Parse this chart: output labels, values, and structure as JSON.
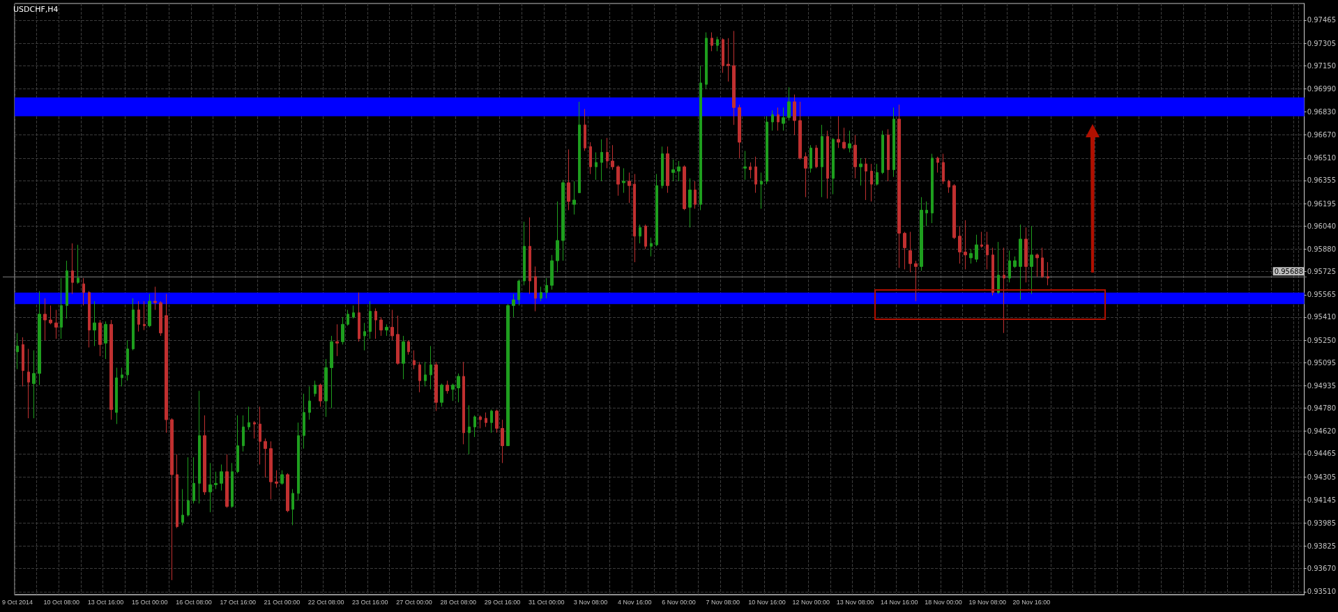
{
  "chart_data": {
    "type": "candlestick",
    "title": "USDCHF,H4",
    "categories": [
      "9 Oct 2014",
      null,
      null,
      null,
      null,
      null,
      null,
      null,
      "10 Oct 08:00",
      null,
      null,
      null,
      null,
      null,
      null,
      null,
      "13 Oct 16:00",
      null,
      null,
      null,
      null,
      null,
      null,
      null,
      "15 Oct 00:00",
      null,
      null,
      null,
      null,
      null,
      null,
      null,
      "16 Oct 08:00",
      null,
      null,
      null,
      null,
      null,
      null,
      null,
      "17 Oct 16:00",
      null,
      null,
      null,
      null,
      null,
      null,
      null,
      "21 Oct 00:00",
      null,
      null,
      null,
      null,
      null,
      null,
      null,
      "22 Oct 08:00",
      null,
      null,
      null,
      null,
      null,
      null,
      null,
      "23 Oct 16:00",
      null,
      null,
      null,
      null,
      null,
      null,
      null,
      "27 Oct 00:00",
      null,
      null,
      null,
      null,
      null,
      null,
      null,
      "28 Oct 08:00",
      null,
      null,
      null,
      null,
      null,
      null,
      null,
      "29 Oct 16:00",
      null,
      null,
      null,
      null,
      null,
      null,
      null,
      "31 Oct 00:00",
      null,
      null,
      null,
      null,
      null,
      null,
      null,
      "3 Nov 08:00",
      null,
      null,
      null,
      null,
      null,
      null,
      null,
      "4 Nov 16:00",
      null,
      null,
      null,
      null,
      null,
      null,
      null,
      "6 Nov 00:00",
      null,
      null,
      null,
      null,
      null,
      null,
      null,
      "7 Nov 08:00",
      null,
      null,
      null,
      null,
      null,
      null,
      null,
      "10 Nov 16:00",
      null,
      null,
      null,
      null,
      null,
      null,
      null,
      "12 Nov 00:00",
      null,
      null,
      null,
      null,
      null,
      null,
      null,
      "13 Nov 08:00",
      null,
      null,
      null,
      null,
      null,
      null,
      null,
      "14 Nov 16:00",
      null,
      null,
      null,
      null,
      null,
      null,
      null,
      "18 Nov 00:00",
      null,
      null,
      null,
      null,
      null,
      null,
      null,
      "19 Nov 08:00",
      null,
      null,
      null,
      null,
      null,
      null,
      null,
      "20 Nov 16:00",
      null,
      null,
      null,
      null,
      null,
      null,
      null,
      null,
      null,
      null,
      null,
      null,
      null,
      null,
      null,
      null,
      null,
      null,
      null,
      null,
      null,
      null,
      null,
      null,
      null,
      null,
      null,
      null,
      null,
      null,
      null,
      null,
      null,
      null,
      null,
      null,
      null,
      null,
      null,
      null,
      null,
      null,
      null,
      null,
      null,
      null,
      null,
      null,
      null
    ],
    "ohlc": [
      [
        0.9517,
        0.953,
        0.9505,
        0.9521
      ],
      [
        0.9522,
        0.9527,
        0.9493,
        0.9504
      ],
      [
        0.9503,
        0.9519,
        0.9471,
        0.9496
      ],
      [
        0.9495,
        0.9518,
        0.9471,
        0.9502
      ],
      [
        0.9502,
        0.9559,
        0.9494,
        0.9543
      ],
      [
        0.9543,
        0.9554,
        0.9525,
        0.9539
      ],
      [
        0.9539,
        0.9549,
        0.9536,
        0.9537
      ],
      [
        0.9537,
        0.9546,
        0.9526,
        0.9534
      ],
      [
        0.9534,
        0.9568,
        0.9526,
        0.9549
      ],
      [
        0.9549,
        0.958,
        0.954,
        0.9573
      ],
      [
        0.9573,
        0.9592,
        0.9557,
        0.9565
      ],
      [
        0.9565,
        0.9591,
        0.9564,
        0.9568
      ],
      [
        0.9564,
        0.9568,
        0.9549,
        0.9558
      ],
      [
        0.9558,
        0.9559,
        0.952,
        0.9532
      ],
      [
        0.9532,
        0.9552,
        0.9521,
        0.9537
      ],
      [
        0.9537,
        0.9539,
        0.9514,
        0.9522
      ],
      [
        0.9523,
        0.9538,
        0.9512,
        0.9536
      ],
      [
        0.9536,
        0.9539,
        0.947,
        0.9477
      ],
      [
        0.9475,
        0.9506,
        0.9467,
        0.9499
      ],
      [
        0.9499,
        0.9506,
        0.9493,
        0.9501
      ],
      [
        0.9501,
        0.9525,
        0.9497,
        0.9519
      ],
      [
        0.9519,
        0.9554,
        0.9518,
        0.9546
      ],
      [
        0.9546,
        0.9552,
        0.9531,
        0.9536
      ],
      [
        0.9536,
        0.9552,
        0.9532,
        0.9535
      ],
      [
        0.9535,
        0.9557,
        0.9534,
        0.9552
      ],
      [
        0.9552,
        0.9562,
        0.9546,
        0.9551
      ],
      [
        0.9551,
        0.9552,
        0.9528,
        0.953
      ],
      [
        0.9542,
        0.9557,
        0.9461,
        0.947
      ],
      [
        0.947,
        0.9471,
        0.9359,
        0.9432
      ],
      [
        0.9432,
        0.9446,
        0.9395,
        0.9396
      ],
      [
        0.9399,
        0.9422,
        0.9397,
        0.9404
      ],
      [
        0.9404,
        0.9444,
        0.9403,
        0.9414
      ],
      [
        0.9414,
        0.9444,
        0.9412,
        0.9426
      ],
      [
        0.9426,
        0.949,
        0.9412,
        0.9459
      ],
      [
        0.9459,
        0.9473,
        0.9418,
        0.942
      ],
      [
        0.942,
        0.944,
        0.9406,
        0.9425
      ],
      [
        0.9425,
        0.9434,
        0.9422,
        0.9426
      ],
      [
        0.9426,
        0.9439,
        0.9421,
        0.9434
      ],
      [
        0.9434,
        0.9446,
        0.9409,
        0.941
      ],
      [
        0.941,
        0.944,
        0.9409,
        0.9434
      ],
      [
        0.9434,
        0.9473,
        0.9433,
        0.9452
      ],
      [
        0.9452,
        0.9473,
        0.9448,
        0.9465
      ],
      [
        0.9465,
        0.9479,
        0.9463,
        0.9468
      ],
      [
        0.9468,
        0.9469,
        0.9457,
        0.9467
      ],
      [
        0.9467,
        0.9479,
        0.9439,
        0.9455
      ],
      [
        0.9455,
        0.9457,
        0.943,
        0.945
      ],
      [
        0.945,
        0.9455,
        0.9415,
        0.9427
      ],
      [
        0.9427,
        0.9435,
        0.9423,
        0.9426
      ],
      [
        0.9426,
        0.9435,
        0.9425,
        0.9432
      ],
      [
        0.9432,
        0.9433,
        0.9406,
        0.9407
      ],
      [
        0.9408,
        0.9422,
        0.9397,
        0.9419
      ],
      [
        0.9419,
        0.9468,
        0.9414,
        0.9459
      ],
      [
        0.9459,
        0.9488,
        0.945,
        0.9475
      ],
      [
        0.9475,
        0.9493,
        0.947,
        0.9483
      ],
      [
        0.9488,
        0.9497,
        0.9486,
        0.9494
      ],
      [
        0.9494,
        0.9495,
        0.9479,
        0.9483
      ],
      [
        0.9483,
        0.9512,
        0.9472,
        0.9506
      ],
      [
        0.9506,
        0.9528,
        0.9478,
        0.9524
      ],
      [
        0.9524,
        0.9536,
        0.9514,
        0.9523
      ],
      [
        0.9524,
        0.9541,
        0.9522,
        0.9536
      ],
      [
        0.9536,
        0.9546,
        0.9535,
        0.9543
      ],
      [
        0.9541,
        0.9549,
        0.954,
        0.9544
      ],
      [
        0.9544,
        0.9558,
        0.9524,
        0.9526
      ],
      [
        0.9528,
        0.9537,
        0.9518,
        0.9531
      ],
      [
        0.9531,
        0.9552,
        0.9526,
        0.9545
      ],
      [
        0.9545,
        0.9547,
        0.9526,
        0.9539
      ],
      [
        0.9539,
        0.9541,
        0.9528,
        0.9532
      ],
      [
        0.9532,
        0.9536,
        0.9528,
        0.9534
      ],
      [
        0.9534,
        0.9546,
        0.9525,
        0.9528
      ],
      [
        0.9529,
        0.9542,
        0.9508,
        0.9509
      ],
      [
        0.9509,
        0.9528,
        0.9498,
        0.9524
      ],
      [
        0.9524,
        0.9525,
        0.9515,
        0.9517
      ],
      [
        0.9511,
        0.9518,
        0.9505,
        0.9508
      ],
      [
        0.9508,
        0.951,
        0.9489,
        0.9497
      ],
      [
        0.9497,
        0.951,
        0.9493,
        0.9501
      ],
      [
        0.9501,
        0.9521,
        0.9491,
        0.9508
      ],
      [
        0.9508,
        0.951,
        0.9476,
        0.9482
      ],
      [
        0.9482,
        0.9495,
        0.9479,
        0.9494
      ],
      [
        0.9494,
        0.9497,
        0.9488,
        0.949
      ],
      [
        0.9491,
        0.9495,
        0.9483,
        0.9494
      ],
      [
        0.9492,
        0.9502,
        0.9482,
        0.95
      ],
      [
        0.95,
        0.951,
        0.9453,
        0.9461
      ],
      [
        0.9461,
        0.948,
        0.9446,
        0.9465
      ],
      [
        0.9465,
        0.9473,
        0.9458,
        0.9472
      ],
      [
        0.9472,
        0.9473,
        0.9464,
        0.947
      ],
      [
        0.9471,
        0.9475,
        0.9465,
        0.9468
      ],
      [
        0.9468,
        0.9477,
        0.9461,
        0.9476
      ],
      [
        0.9476,
        0.9477,
        0.9461,
        0.9464
      ],
      [
        0.9464,
        0.947,
        0.944,
        0.9452
      ],
      [
        0.9452,
        0.955,
        0.9452,
        0.9549
      ],
      [
        0.9549,
        0.9557,
        0.9541,
        0.9553
      ],
      [
        0.9553,
        0.9567,
        0.9549,
        0.9566
      ],
      [
        0.9566,
        0.9607,
        0.9563,
        0.959
      ],
      [
        0.959,
        0.961,
        0.9557,
        0.9566
      ],
      [
        0.9569,
        0.9576,
        0.9545,
        0.9554
      ],
      [
        0.9554,
        0.9562,
        0.9552,
        0.9558
      ],
      [
        0.9558,
        0.9568,
        0.9554,
        0.9563
      ],
      [
        0.9563,
        0.9584,
        0.956,
        0.958
      ],
      [
        0.958,
        0.9621,
        0.9572,
        0.9594
      ],
      [
        0.9594,
        0.9636,
        0.958,
        0.9634
      ],
      [
        0.9634,
        0.9657,
        0.9615,
        0.9621
      ],
      [
        0.9619,
        0.9635,
        0.9612,
        0.9622
      ],
      [
        0.9627,
        0.969,
        0.9627,
        0.9674
      ],
      [
        0.9674,
        0.9685,
        0.9656,
        0.9658
      ],
      [
        0.9659,
        0.9662,
        0.964,
        0.9645
      ],
      [
        0.9645,
        0.9655,
        0.9636,
        0.9648
      ],
      [
        0.9648,
        0.9664,
        0.9635,
        0.9655
      ],
      [
        0.9655,
        0.9665,
        0.9644,
        0.9649
      ],
      [
        0.9649,
        0.966,
        0.9643,
        0.9645
      ],
      [
        0.9645,
        0.9646,
        0.9625,
        0.9633
      ],
      [
        0.9634,
        0.9644,
        0.9627,
        0.9635
      ],
      [
        0.9635,
        0.9641,
        0.962,
        0.9632
      ],
      [
        0.9633,
        0.964,
        0.9579,
        0.9597
      ],
      [
        0.9597,
        0.9605,
        0.9592,
        0.9603
      ],
      [
        0.9604,
        0.9605,
        0.9588,
        0.959
      ],
      [
        0.959,
        0.9596,
        0.9583,
        0.9592
      ],
      [
        0.9591,
        0.964,
        0.959,
        0.9632
      ],
      [
        0.9632,
        0.9659,
        0.963,
        0.9654
      ],
      [
        0.9654,
        0.9659,
        0.9627,
        0.9632
      ],
      [
        0.9641,
        0.965,
        0.9635,
        0.9643
      ],
      [
        0.9642,
        0.9649,
        0.9635,
        0.9645
      ],
      [
        0.9645,
        0.9646,
        0.9615,
        0.9616
      ],
      [
        0.9617,
        0.9637,
        0.9603,
        0.9629
      ],
      [
        0.9629,
        0.9635,
        0.9616,
        0.9619
      ],
      [
        0.9619,
        0.9715,
        0.9615,
        0.9703
      ],
      [
        0.9702,
        0.9738,
        0.9699,
        0.9734
      ],
      [
        0.9734,
        0.9738,
        0.9725,
        0.9729
      ],
      [
        0.9729,
        0.9735,
        0.9725,
        0.9733
      ],
      [
        0.9733,
        0.9734,
        0.971,
        0.9715
      ],
      [
        0.9716,
        0.9734,
        0.9704,
        0.9715
      ],
      [
        0.9715,
        0.9739,
        0.9674,
        0.9686
      ],
      [
        0.9686,
        0.9688,
        0.9651,
        0.9662
      ],
      [
        0.9644,
        0.9656,
        0.9636,
        0.9645
      ],
      [
        0.9645,
        0.9648,
        0.9637,
        0.9643
      ],
      [
        0.9645,
        0.9652,
        0.9627,
        0.9633
      ],
      [
        0.9633,
        0.9641,
        0.9616,
        0.9635
      ],
      [
        0.9635,
        0.968,
        0.9633,
        0.9676
      ],
      [
        0.9676,
        0.9684,
        0.967,
        0.9681
      ],
      [
        0.9681,
        0.9686,
        0.967,
        0.9676
      ],
      [
        0.9675,
        0.9686,
        0.967,
        0.9679
      ],
      [
        0.9679,
        0.97,
        0.9677,
        0.969
      ],
      [
        0.969,
        0.9695,
        0.9667,
        0.9677
      ],
      [
        0.9677,
        0.969,
        0.965,
        0.9651
      ],
      [
        0.9652,
        0.9655,
        0.9624,
        0.9644
      ],
      [
        0.9644,
        0.966,
        0.9641,
        0.9658
      ],
      [
        0.9658,
        0.966,
        0.9644,
        0.9645
      ],
      [
        0.9645,
        0.9674,
        0.9624,
        0.9666
      ],
      [
        0.9666,
        0.967,
        0.9623,
        0.9637
      ],
      [
        0.9637,
        0.9665,
        0.9626,
        0.9664
      ],
      [
        0.9664,
        0.968,
        0.9658,
        0.9662
      ],
      [
        0.9662,
        0.9672,
        0.9657,
        0.9658
      ],
      [
        0.9658,
        0.967,
        0.9655,
        0.9661
      ],
      [
        0.966,
        0.9667,
        0.9637,
        0.9645
      ],
      [
        0.9645,
        0.9651,
        0.9632,
        0.9647
      ],
      [
        0.9647,
        0.9651,
        0.9622,
        0.9642
      ],
      [
        0.9642,
        0.9647,
        0.9621,
        0.9633
      ],
      [
        0.9633,
        0.9647,
        0.9632,
        0.9641
      ],
      [
        0.9641,
        0.967,
        0.964,
        0.9667
      ],
      [
        0.9667,
        0.9671,
        0.9635,
        0.9643
      ],
      [
        0.9643,
        0.9686,
        0.9638,
        0.9678
      ],
      [
        0.9678,
        0.9688,
        0.9575,
        0.9599
      ],
      [
        0.9599,
        0.96,
        0.9574,
        0.9589
      ],
      [
        0.9587,
        0.96,
        0.9572,
        0.9578
      ],
      [
        0.9578,
        0.958,
        0.9552,
        0.9576
      ],
      [
        0.9576,
        0.9624,
        0.9573,
        0.9615
      ],
      [
        0.9613,
        0.9621,
        0.9604,
        0.9615
      ],
      [
        0.9613,
        0.9654,
        0.9606,
        0.9651
      ],
      [
        0.9651,
        0.9652,
        0.9641,
        0.9648
      ],
      [
        0.9648,
        0.9654,
        0.9633,
        0.9635
      ],
      [
        0.9635,
        0.9636,
        0.9627,
        0.9631
      ],
      [
        0.9632,
        0.9633,
        0.9595,
        0.9596
      ],
      [
        0.9597,
        0.9604,
        0.9578,
        0.9586
      ],
      [
        0.9586,
        0.9608,
        0.9574,
        0.9584
      ],
      [
        0.9582,
        0.9588,
        0.9578,
        0.9585
      ],
      [
        0.9581,
        0.9598,
        0.9579,
        0.9591
      ],
      [
        0.9591,
        0.96,
        0.9589,
        0.959
      ],
      [
        0.9591,
        0.96,
        0.9574,
        0.9584
      ],
      [
        0.9584,
        0.9589,
        0.9556,
        0.9558
      ],
      [
        0.9558,
        0.9593,
        0.9557,
        0.957
      ],
      [
        0.957,
        0.9589,
        0.953,
        0.9568
      ],
      [
        0.9568,
        0.9587,
        0.9565,
        0.958
      ],
      [
        0.9576,
        0.9583,
        0.9575,
        0.958
      ],
      [
        0.9576,
        0.9605,
        0.9553,
        0.9595
      ],
      [
        0.9595,
        0.9603,
        0.9565,
        0.9576
      ],
      [
        0.9576,
        0.9604,
        0.9557,
        0.9584
      ],
      [
        0.9584,
        0.9585,
        0.9569,
        0.9582
      ],
      [
        0.9582,
        0.9589,
        0.9568,
        0.9569
      ],
      [
        0.9569,
        0.9579,
        0.9563,
        0.9568
      ],
      null,
      null,
      null,
      null,
      null,
      null,
      null,
      null,
      null,
      null,
      null,
      null,
      null,
      null,
      null,
      null,
      null,
      null,
      null,
      null,
      null,
      null,
      null,
      null,
      null,
      null,
      null,
      null,
      null,
      null,
      null,
      null,
      null,
      null,
      null,
      null,
      null,
      null,
      null,
      null,
      null,
      null,
      null,
      null,
      null,
      null
    ],
    "ylim": [
      0.9349,
      0.9758
    ],
    "yticks": [
      {
        "value": 0.97465,
        "label": "0.97465"
      },
      {
        "value": 0.97305,
        "label": "0.97305"
      },
      {
        "value": 0.9715,
        "label": "0.97150"
      },
      {
        "value": 0.9699,
        "label": "0.96990"
      },
      {
        "value": 0.9683,
        "label": "0.96830"
      },
      {
        "value": 0.9667,
        "label": "0.96670"
      },
      {
        "value": 0.9651,
        "label": "0.96510"
      },
      {
        "value": 0.96355,
        "label": "0.96355"
      },
      {
        "value": 0.96195,
        "label": "0.96195"
      },
      {
        "value": 0.9604,
        "label": "0.96040"
      },
      {
        "value": 0.9588,
        "label": "0.95880"
      },
      {
        "value": 0.95725,
        "label": "0.95725"
      },
      {
        "value": 0.95565,
        "label": "0.95565"
      },
      {
        "value": 0.9541,
        "label": "0.95410"
      },
      {
        "value": 0.9525,
        "label": "0.95250"
      },
      {
        "value": 0.95095,
        "label": "0.95095"
      },
      {
        "value": 0.94935,
        "label": "0.94935"
      },
      {
        "value": 0.9478,
        "label": "0.94780"
      },
      {
        "value": 0.9462,
        "label": "0.94620"
      },
      {
        "value": 0.94465,
        "label": "0.94465"
      },
      {
        "value": 0.94305,
        "label": "0.94305"
      },
      {
        "value": 0.94145,
        "label": "0.94145"
      },
      {
        "value": 0.93985,
        "label": "0.93985"
      },
      {
        "value": 0.93825,
        "label": "0.93825"
      },
      {
        "value": 0.9367,
        "label": "0.93670"
      },
      {
        "value": 0.9351,
        "label": "0.93510"
      }
    ],
    "bands": [
      {
        "axis": "y",
        "from": 0.968,
        "to": 0.9693,
        "color": "#0000ff"
      },
      {
        "axis": "y",
        "from": 0.955,
        "to": 0.9558,
        "color": "#0000ff"
      }
    ],
    "ref_lines": [
      {
        "axis": "y",
        "value": 0.95688,
        "label": "0.95688",
        "color": "#808080"
      }
    ],
    "grid": true
  }
}
